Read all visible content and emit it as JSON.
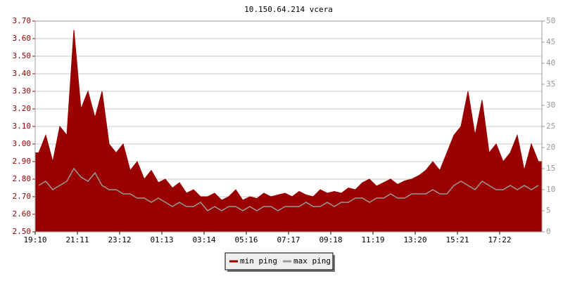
{
  "chart_data": {
    "type": "area-line",
    "title": "10.150.64.214 vcera",
    "categories": [
      "19:10",
      null,
      null,
      null,
      null,
      null,
      "21:11",
      null,
      null,
      null,
      null,
      null,
      "23:12",
      null,
      null,
      null,
      null,
      null,
      "01:13",
      null,
      null,
      null,
      null,
      null,
      "03:14",
      null,
      null,
      null,
      null,
      null,
      "05:16",
      null,
      null,
      null,
      null,
      null,
      "07:17",
      null,
      null,
      null,
      null,
      null,
      "09:18",
      null,
      null,
      null,
      null,
      null,
      "11:19",
      null,
      null,
      null,
      null,
      null,
      "13:20",
      null,
      null,
      null,
      null,
      null,
      "15:21",
      null,
      null,
      null,
      null,
      null,
      "17:22",
      null,
      null,
      null,
      null,
      null
    ],
    "series": [
      {
        "name": "min ping",
        "color": "#990000",
        "fill": true,
        "values": [
          2.95,
          3.05,
          2.9,
          3.1,
          3.05,
          3.65,
          3.2,
          3.3,
          3.15,
          3.3,
          3.0,
          2.95,
          3.0,
          2.85,
          2.9,
          2.8,
          2.85,
          2.78,
          2.8,
          2.75,
          2.78,
          2.72,
          2.74,
          2.7,
          2.7,
          2.72,
          2.68,
          2.7,
          2.74,
          2.68,
          2.7,
          2.69,
          2.72,
          2.7,
          2.71,
          2.72,
          2.7,
          2.73,
          2.71,
          2.7,
          2.74,
          2.72,
          2.73,
          2.72,
          2.75,
          2.74,
          2.78,
          2.8,
          2.76,
          2.78,
          2.8,
          2.77,
          2.79,
          2.8,
          2.82,
          2.85,
          2.9,
          2.85,
          2.95,
          3.05,
          3.1,
          3.3,
          3.05,
          3.25,
          2.95,
          3.0,
          2.9,
          2.95,
          3.05,
          2.85,
          3.0,
          2.9
        ]
      },
      {
        "name": "max ping",
        "color": "#999999",
        "axis": "y2",
        "values": [
          11,
          12,
          10,
          11,
          12,
          15,
          13,
          12,
          14,
          11,
          10,
          10,
          9,
          9,
          8,
          8,
          7,
          8,
          7,
          6,
          7,
          6,
          6,
          7,
          5,
          6,
          5,
          6,
          6,
          5,
          6,
          5,
          6,
          6,
          5,
          6,
          6,
          6,
          7,
          6,
          6,
          7,
          6,
          7,
          7,
          8,
          8,
          7,
          8,
          8,
          9,
          8,
          8,
          9,
          9,
          9,
          10,
          9,
          9,
          11,
          12,
          11,
          10,
          12,
          11,
          10,
          10,
          11,
          10,
          11,
          10,
          11
        ]
      }
    ],
    "ylim": [
      2.5,
      3.7
    ],
    "yticks": [
      {
        "value": 2.5,
        "label": "2.50"
      },
      {
        "value": 2.6,
        "label": "2.60"
      },
      {
        "value": 2.7,
        "label": "2.70"
      },
      {
        "value": 2.8,
        "label": "2.80"
      },
      {
        "value": 2.9,
        "label": "2.90"
      },
      {
        "value": 3.0,
        "label": "3.00"
      },
      {
        "value": 3.1,
        "label": "3.10"
      },
      {
        "value": 3.2,
        "label": "3.20"
      },
      {
        "value": 3.3,
        "label": "3.30"
      },
      {
        "value": 3.4,
        "label": "3.40"
      },
      {
        "value": 3.5,
        "label": "3.50"
      },
      {
        "value": 3.6,
        "label": "3.60"
      },
      {
        "value": 3.7,
        "label": "3.70"
      }
    ],
    "y2lim": [
      0,
      50
    ],
    "y2ticks": [
      0,
      5,
      10,
      15,
      20,
      25,
      30,
      35,
      40,
      45,
      50
    ],
    "grid": true,
    "legend": "bottom"
  }
}
